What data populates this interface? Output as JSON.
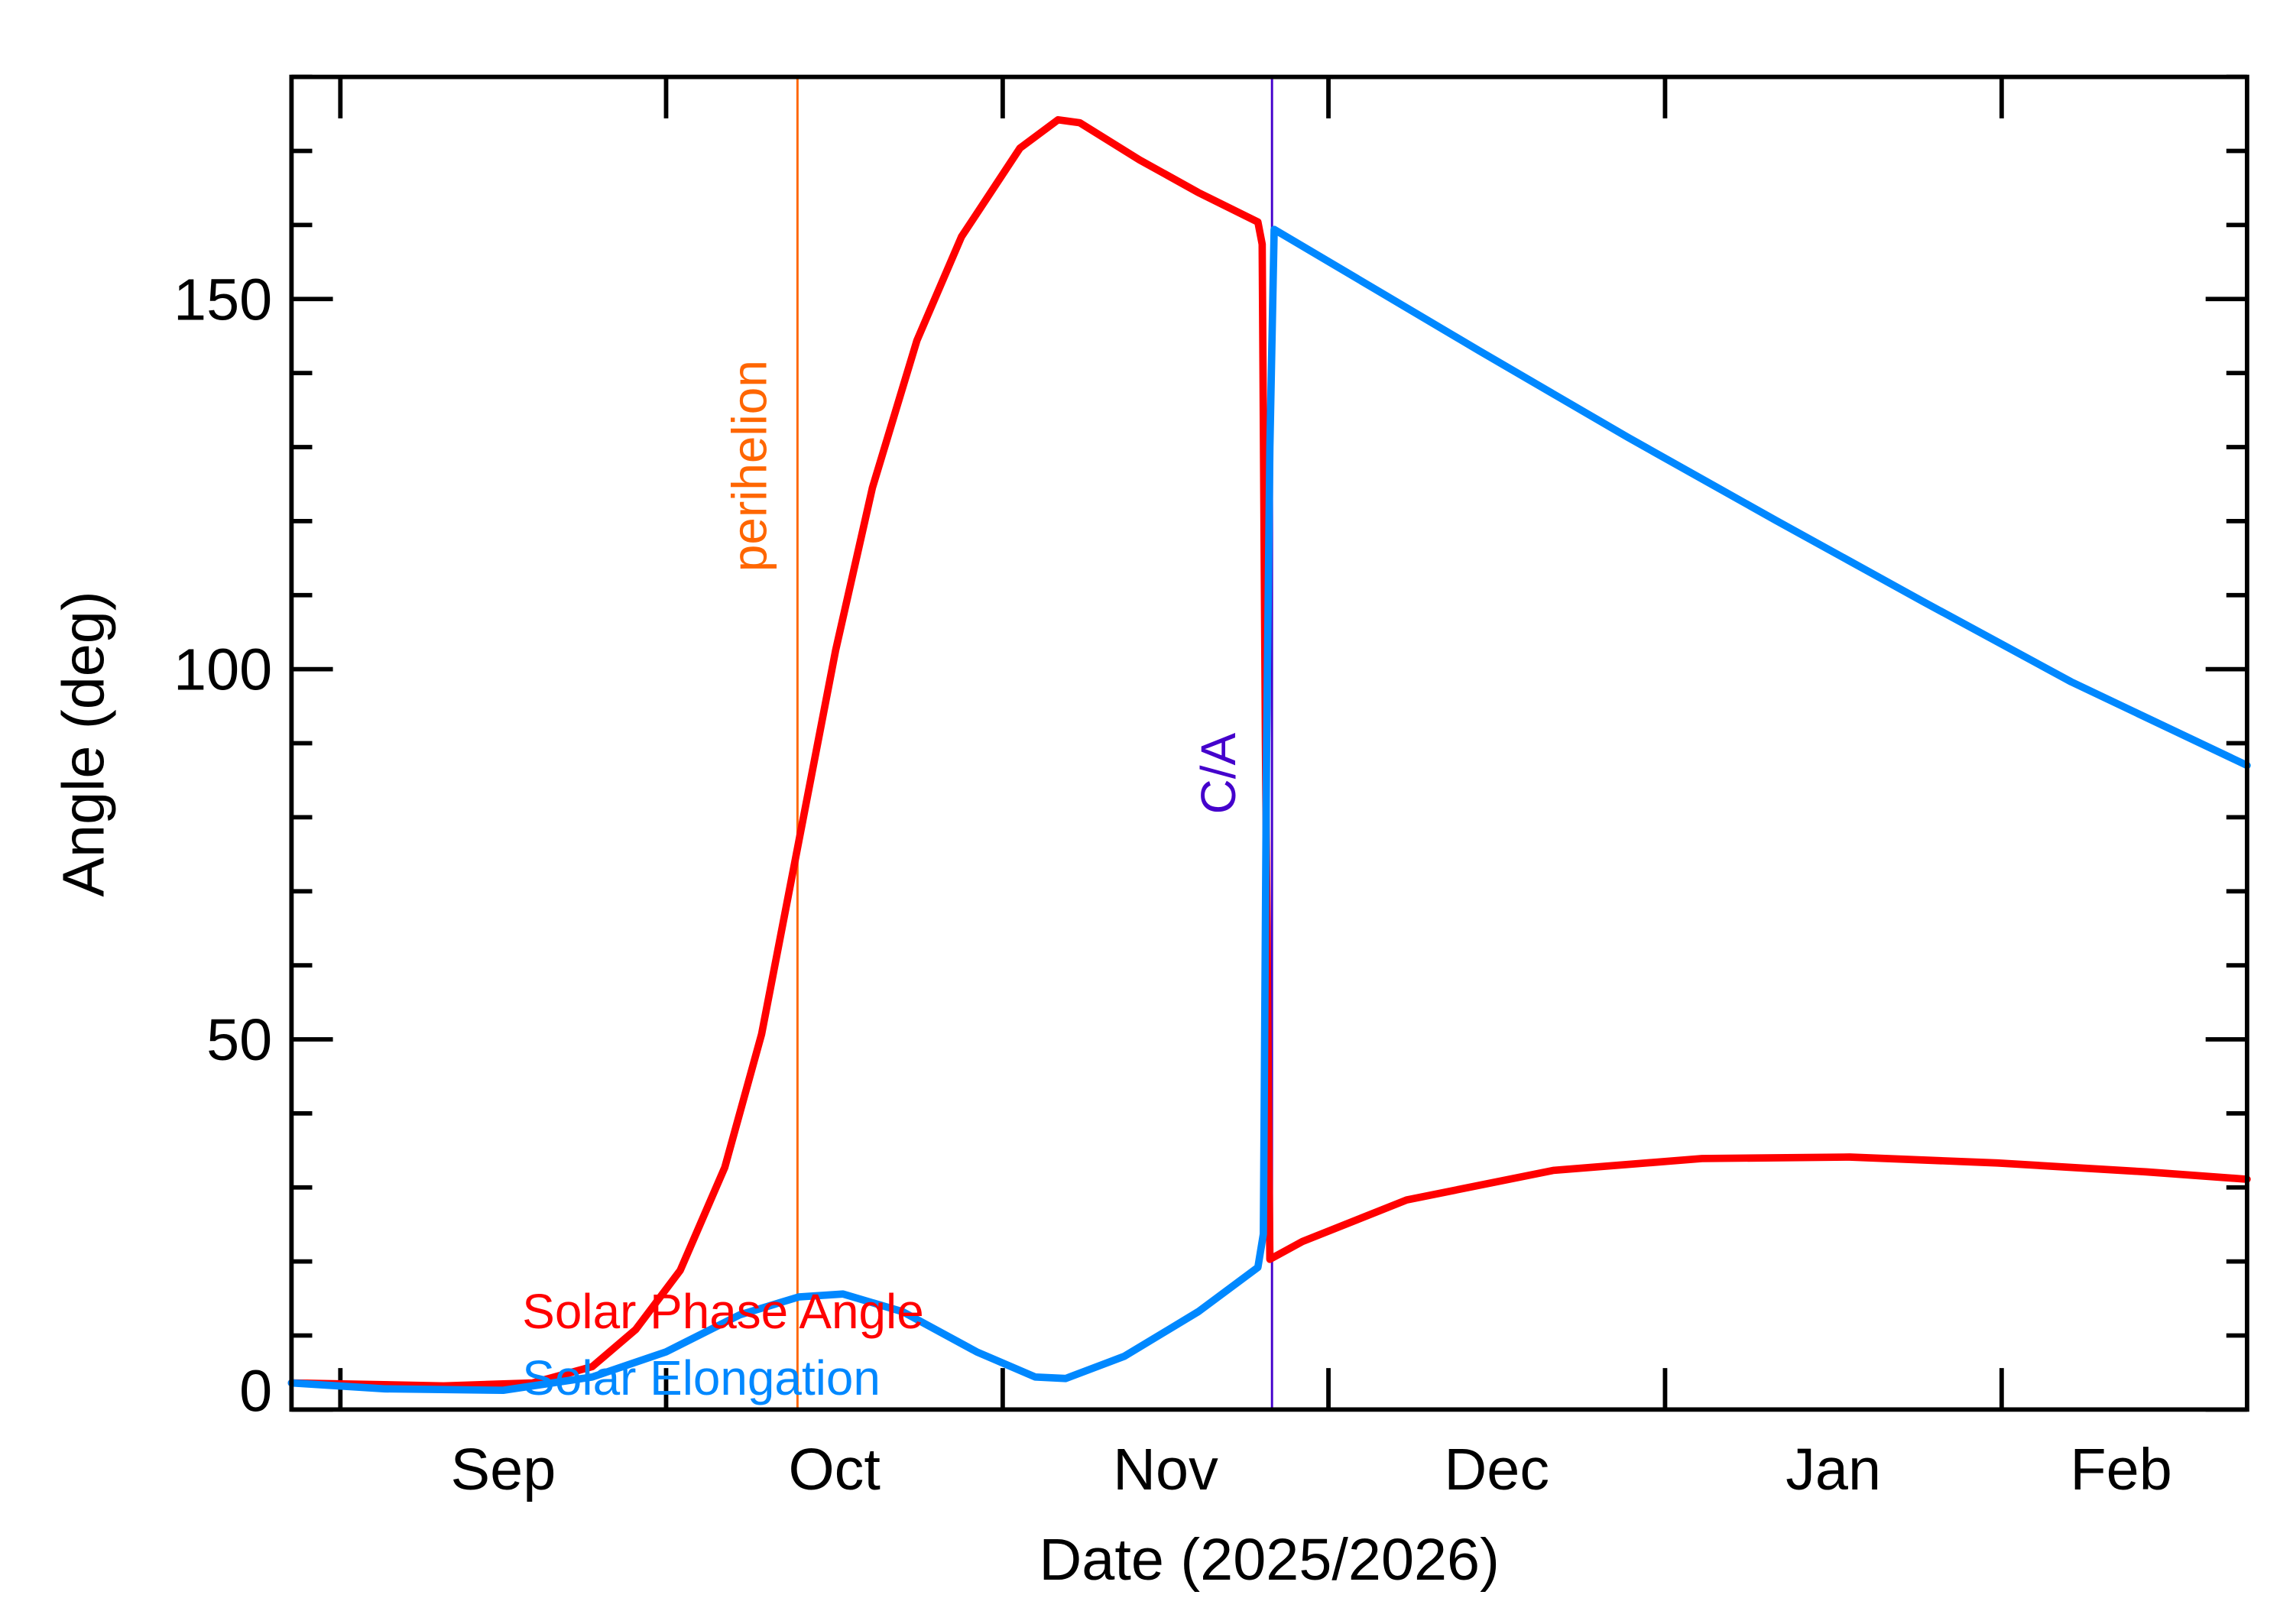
{
  "chart_data": {
    "type": "line",
    "title": "",
    "xlabel": "Date (2025/2026)",
    "ylabel": "Angle (deg)",
    "x_units": "days since 2025-09-01",
    "xlim": [
      -4.5,
      175.6
    ],
    "ylim": [
      0,
      180
    ],
    "grid": false,
    "x_major_ticks": [
      0,
      30,
      61,
      91,
      122,
      153
    ],
    "x_tick_labels": [
      {
        "label": "Sep",
        "at": 15
      },
      {
        "label": "Oct",
        "at": 45.5
      },
      {
        "label": "Nov",
        "at": 76
      },
      {
        "label": "Dec",
        "at": 106.5
      },
      {
        "label": "Jan",
        "at": 137.5
      },
      {
        "label": "Feb",
        "at": 164
      }
    ],
    "y_major_ticks": [
      0,
      50,
      100,
      150
    ],
    "y_tick_labels": [
      "0",
      "50",
      "100",
      "150"
    ],
    "y_minor_step": 10,
    "series": [
      {
        "name": "Solar Phase Angle",
        "color": "#ff0000",
        "points": [
          [
            -4.5,
            3.6
          ],
          [
            9.5,
            3.2
          ],
          [
            17.7,
            3.6
          ],
          [
            23.2,
            5.8
          ],
          [
            27.2,
            10.8
          ],
          [
            31.3,
            18.8
          ],
          [
            35.4,
            32.7
          ],
          [
            38.8,
            50.7
          ],
          [
            42.2,
            76.6
          ],
          [
            45.6,
            102.5
          ],
          [
            49,
            124.5
          ],
          [
            53.1,
            144.4
          ],
          [
            57.2,
            158.4
          ],
          [
            62.6,
            170.4
          ],
          [
            66.1,
            174.2
          ],
          [
            68.1,
            173.8
          ],
          [
            73.6,
            168.8
          ],
          [
            79,
            164.4
          ],
          [
            84.5,
            160.4
          ],
          [
            84.9,
            157.4
          ],
          [
            85.2,
            90
          ],
          [
            85.6,
            20.3
          ],
          [
            88.6,
            22.7
          ],
          [
            98.2,
            28.3
          ],
          [
            111.7,
            32.3
          ],
          [
            125.4,
            33.9
          ],
          [
            139,
            34.1
          ],
          [
            152.6,
            33.3
          ],
          [
            166.3,
            32.1
          ],
          [
            175.6,
            31.1
          ]
        ]
      },
      {
        "name": "Solar Elongation",
        "color": "#0088ff",
        "points": [
          [
            -4.5,
            3.6
          ],
          [
            4.1,
            2.8
          ],
          [
            15,
            2.6
          ],
          [
            23.2,
            4.4
          ],
          [
            30,
            7.8
          ],
          [
            36.8,
            12.8
          ],
          [
            42.2,
            15.2
          ],
          [
            46.3,
            15.6
          ],
          [
            51.8,
            13.2
          ],
          [
            58.6,
            7.8
          ],
          [
            64,
            4.4
          ],
          [
            66.8,
            4.2
          ],
          [
            72.2,
            7.2
          ],
          [
            79,
            13.2
          ],
          [
            84.5,
            19.2
          ],
          [
            85,
            23.7
          ],
          [
            85.3,
            90
          ],
          [
            85.6,
            130
          ],
          [
            86,
            159.4
          ],
          [
            91.3,
            154.8
          ],
          [
            104.9,
            143
          ],
          [
            118.6,
            131.3
          ],
          [
            132.2,
            120.1
          ],
          [
            145.8,
            109.1
          ],
          [
            159.4,
            98.3
          ],
          [
            175.6,
            87
          ]
        ]
      }
    ],
    "annotations": [
      {
        "label": "perihelion",
        "x": 42.1,
        "color": "#ff6600"
      },
      {
        "label": "C/A",
        "x": 85.8,
        "color": "#4400cc"
      }
    ],
    "legend": {
      "placement": "bottom-left, inline"
    }
  }
}
